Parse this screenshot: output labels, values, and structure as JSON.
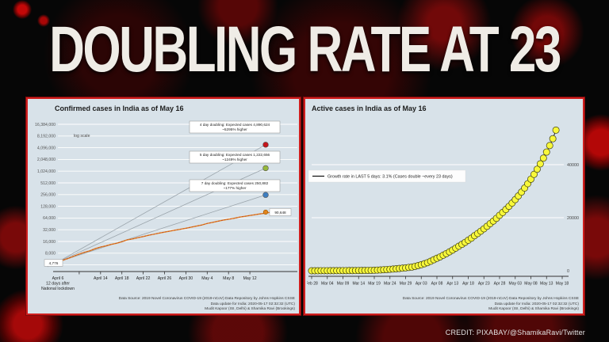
{
  "header": {
    "title": "DOUBLING RATE AT 23"
  },
  "credit": "CREDIT: PIXABAY/@ShamikaRavi/Twitter",
  "chart_data": [
    {
      "type": "line",
      "title": "Confirmed cases in India as of May 16",
      "scale_note": "log scale",
      "ylog_base": 2,
      "y_ticks": [
        {
          "v": 4000,
          "label": "4,000"
        },
        {
          "v": 8000,
          "label": "8,000"
        },
        {
          "v": 16000,
          "label": "16,000"
        },
        {
          "v": 32000,
          "label": "32,000"
        },
        {
          "v": 64000,
          "label": "64,000"
        },
        {
          "v": 128000,
          "label": "128,000"
        },
        {
          "v": 256000,
          "label": "256,000"
        },
        {
          "v": 512000,
          "label": "512,000"
        },
        {
          "v": 1024000,
          "label": "1,024,000"
        },
        {
          "v": 2048000,
          "label": "2,048,000"
        },
        {
          "v": 4096000,
          "label": "4,096,000"
        },
        {
          "v": 8192000,
          "label": "8,192,000"
        },
        {
          "v": 16384000,
          "label": "16,384,000"
        }
      ],
      "x_ticks": [
        {
          "day": 0,
          "lines": [
            "April 6",
            "12 days after",
            "National lockdown"
          ]
        },
        {
          "day": 8,
          "lines": [
            "April 14"
          ]
        },
        {
          "day": 12,
          "lines": [
            "April 18"
          ]
        },
        {
          "day": 16,
          "lines": [
            "April 22"
          ]
        },
        {
          "day": 20,
          "lines": [
            "April 26"
          ]
        },
        {
          "day": 24,
          "lines": [
            "April 30"
          ]
        },
        {
          "day": 28,
          "lines": [
            "May 4"
          ]
        },
        {
          "day": 32,
          "lines": [
            "May 8"
          ]
        },
        {
          "day": 36,
          "lines": [
            "May 12"
          ]
        }
      ],
      "tick_mark_days": [
        4,
        8,
        12,
        16,
        20,
        24,
        28,
        32,
        36
      ],
      "start_point": {
        "day": 0,
        "value": 4776,
        "label": "4,776"
      },
      "actual": {
        "name": "Confirmed cases (actual)",
        "color": "#e2841c",
        "dash_color": "#c23a2a",
        "end_label": "90,648",
        "values": [
          4776,
          5311,
          5916,
          6725,
          7598,
          8446,
          9205,
          10453,
          11487,
          12322,
          13430,
          14352,
          15722,
          17615,
          18539,
          20080,
          21370,
          23077,
          24530,
          26283,
          27890,
          29451,
          31324,
          33062,
          34863,
          37257,
          39699,
          42505,
          46437,
          49400,
          52987,
          56351,
          59695,
          62808,
          67161,
          70768,
          74292,
          78055,
          81997,
          85784,
          90648
        ]
      },
      "projections": [
        {
          "name": "4 day doubling",
          "color": "#c4161c",
          "end_value": 4890624,
          "annotation": [
            "4 day doubling: Expected cases 4,890,624",
            "~5295% higher"
          ]
        },
        {
          "name": "5 day doubling",
          "color": "#96b83d",
          "end_value": 1222656,
          "annotation": [
            "5 day doubling: Expected cases 1,222,656",
            "~1249% higher"
          ]
        },
        {
          "name": "7 day doubling",
          "color": "#3d7ec0",
          "end_value": 250882,
          "annotation": [
            "7 day doubling: Expected cases 250,882",
            "~177% higher"
          ]
        }
      ],
      "source_lines": [
        "Data Source: 2019 Novel Coronavirus COVID-19 (2019-nCoV) Data Repository by Johns Hopkins CSSE",
        "Data update for India: 2020-05-17 02:32:32 (UTC)",
        "Mudit Kapoor (ISI, Delhi) & Shamika Ravi (Brookings)"
      ]
    },
    {
      "type": "scatter",
      "title": "Active cases in India as of May 16",
      "legend": "Growth rate in LAST 5 days: 3.1% (Cases double ~every 23 days)",
      "point_color": "#f8f83a",
      "line_color": "#111111",
      "ylim": [
        0,
        55000
      ],
      "y_ticks": [
        {
          "v": 0,
          "label": "0"
        },
        {
          "v": 20000,
          "label": "20000"
        },
        {
          "v": 40000,
          "label": "40000"
        }
      ],
      "x_tick_labels": [
        "Feb 28",
        "Mar 04",
        "Mar 09",
        "Mar 14",
        "Mar 19",
        "Mar 24",
        "Mar 29",
        "Apr 03",
        "Apr 08",
        "Apr 13",
        "Apr 18",
        "Apr 23",
        "Apr 28",
        "May 03",
        "May 08",
        "May 13",
        "May 18"
      ],
      "x_tick_interval_days": 5,
      "x_range_days": [
        0,
        80
      ],
      "series": {
        "name": "Active cases",
        "values": [
          3,
          3,
          5,
          28,
          30,
          31,
          34,
          39,
          43,
          47,
          56,
          62,
          71,
          78,
          93,
          102,
          113,
          125,
          141,
          168,
          194,
          249,
          315,
          397,
          470,
          553,
          640,
          748,
          860,
          981,
          1086,
          1251,
          1398,
          1666,
          1944,
          2280,
          2650,
          3049,
          3588,
          4155,
          4714,
          5218,
          5863,
          6478,
          7128,
          7796,
          8536,
          9272,
          9979,
          10703,
          11507,
          12289,
          13224,
          14042,
          14915,
          15817,
          16767,
          17781,
          18733,
          19762,
          20917,
          21993,
          23109,
          24287,
          25529,
          26836,
          28214,
          29668,
          31203,
          32825,
          34540,
          36354,
          38275,
          40311,
          42470,
          44762,
          47198,
          49789,
          53035
        ]
      },
      "source_lines": [
        "Data Source: 2019 Novel Coronavirus COVID-19 (2019-nCoV) Data Repository by Johns Hopkins CSSE",
        "Data update for India: 2020-05-17 02:32:32 (UTC)",
        "Mudit Kapoor (ISI, Delhi) & Shamika Ravi (Brookings)"
      ]
    }
  ]
}
